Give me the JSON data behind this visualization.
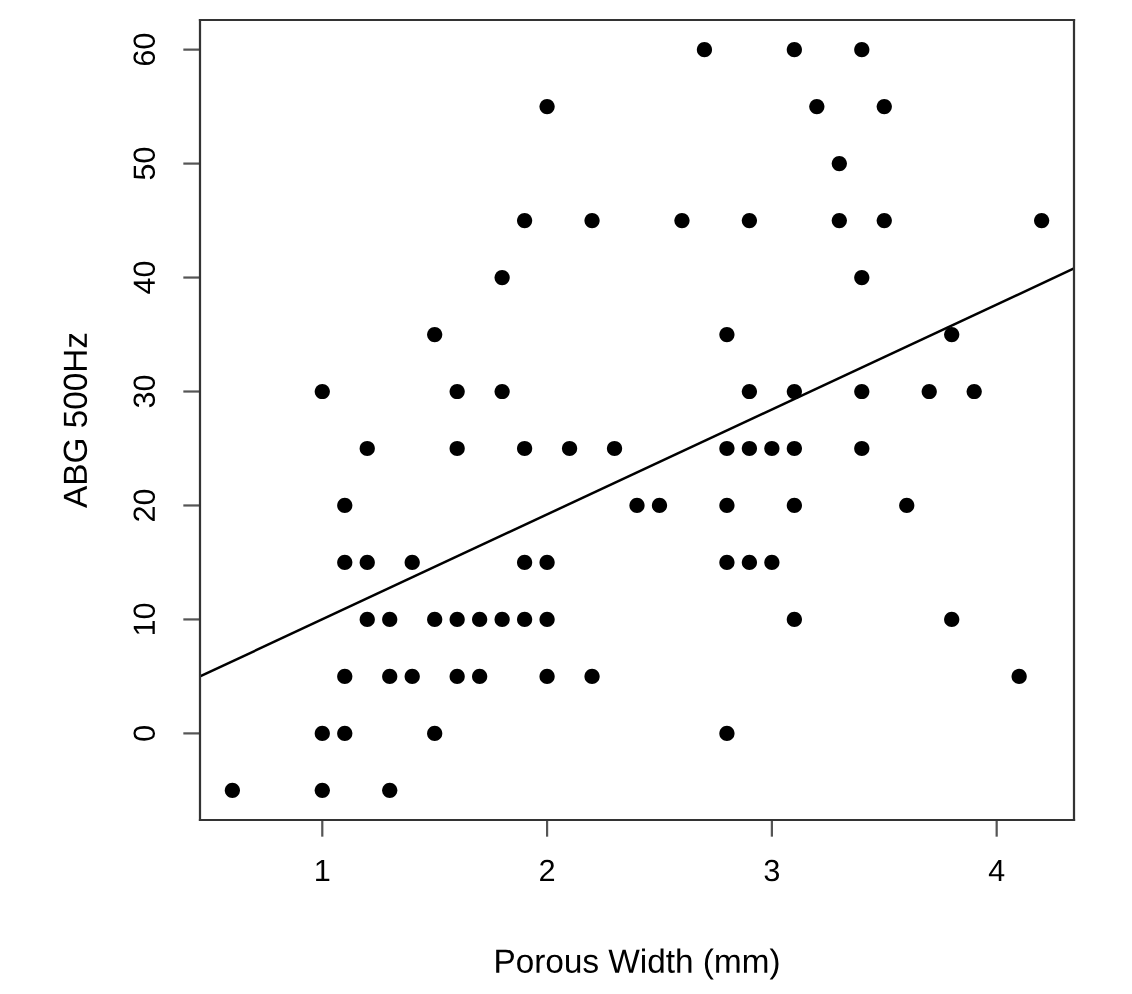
{
  "chart_data": {
    "type": "scatter",
    "xlabel": "Porous Width (mm)",
    "ylabel": "ABG 500Hz",
    "xlim": [
      0.456,
      4.344
    ],
    "ylim": [
      -7.6,
      62.6
    ],
    "xticks": [
      1,
      2,
      3,
      4
    ],
    "yticks": [
      0,
      10,
      20,
      30,
      40,
      50,
      60
    ],
    "grid": false,
    "series": [
      {
        "marker": "circle",
        "color": "#000000",
        "x": [
          0.6,
          1.0,
          1.3,
          1.0,
          1.1,
          1.5,
          2.8,
          1.1,
          1.3,
          1.4,
          1.6,
          1.7,
          2.0,
          2.2,
          4.1,
          1.2,
          1.3,
          1.5,
          1.6,
          1.7,
          1.8,
          1.9,
          2.0,
          3.1,
          3.8,
          1.1,
          1.2,
          1.4,
          1.9,
          2.0,
          2.8,
          2.9,
          3.0,
          1.1,
          2.4,
          2.5,
          2.8,
          3.1,
          3.6,
          1.2,
          1.6,
          1.9,
          2.1,
          2.3,
          2.8,
          2.9,
          3.0,
          3.1,
          3.4,
          1.0,
          1.6,
          1.8,
          2.9,
          3.1,
          3.4,
          3.7,
          3.9,
          1.5,
          2.8,
          3.8,
          1.8,
          3.4,
          1.9,
          2.2,
          2.6,
          2.9,
          3.3,
          3.5,
          4.2,
          3.3,
          2.0,
          3.2,
          3.5,
          2.7,
          3.1,
          3.4
        ],
        "values": [
          -5,
          -5,
          -5,
          0,
          0,
          0,
          0,
          5,
          5,
          5,
          5,
          5,
          5,
          5,
          5,
          10,
          10,
          10,
          10,
          10,
          10,
          10,
          10,
          10,
          10,
          15,
          15,
          15,
          15,
          15,
          15,
          15,
          15,
          20,
          20,
          20,
          20,
          20,
          20,
          25,
          25,
          25,
          25,
          25,
          25,
          25,
          25,
          25,
          25,
          30,
          30,
          30,
          30,
          30,
          30,
          30,
          30,
          35,
          35,
          35,
          40,
          40,
          45,
          45,
          45,
          45,
          45,
          45,
          45,
          50,
          55,
          55,
          55,
          60,
          60,
          60
        ]
      },
      {
        "type": "line",
        "color": "#000000",
        "x": [
          0.456,
          4.344
        ],
        "values": [
          5.0,
          40.8
        ]
      }
    ]
  }
}
